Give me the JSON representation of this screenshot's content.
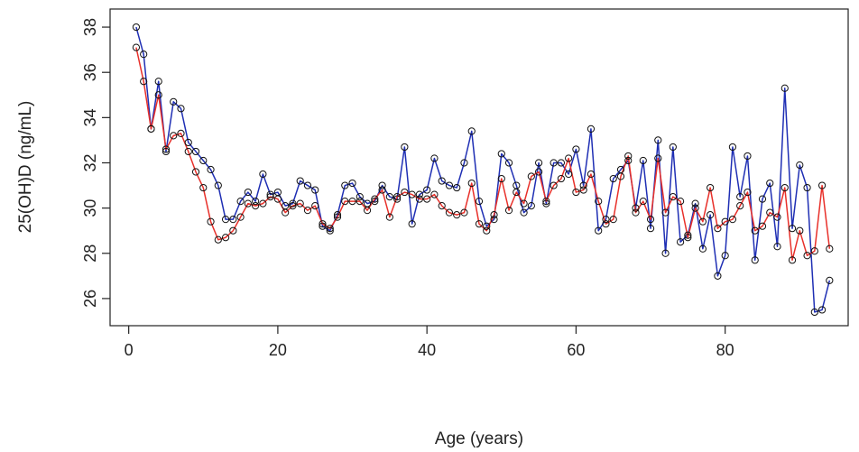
{
  "chart_data": {
    "type": "line",
    "title": "",
    "xlabel": "Age (years)",
    "ylabel": "25(OH)D (ng/mL)",
    "xlim": [
      -2.5,
      96.5
    ],
    "ylim": [
      24.8,
      38.8
    ],
    "grid": false,
    "x_ticks": [
      0,
      20,
      40,
      60,
      80
    ],
    "y_ticks": [
      26,
      28,
      30,
      32,
      34,
      36,
      38
    ],
    "series": [
      {
        "color": "#1f2fb4",
        "x": [
          1,
          2,
          3,
          4,
          5,
          6,
          7,
          8,
          9,
          10,
          11,
          12,
          13,
          14,
          15,
          16,
          17,
          18,
          19,
          20,
          21,
          22,
          23,
          24,
          25,
          26,
          27,
          28,
          29,
          30,
          31,
          32,
          33,
          34,
          35,
          36,
          37,
          38,
          39,
          40,
          41,
          42,
          43,
          44,
          45,
          46,
          47,
          48,
          49,
          50,
          51,
          52,
          53,
          54,
          55,
          56,
          57,
          58,
          59,
          60,
          61,
          62,
          63,
          64,
          65,
          66,
          67,
          68,
          69,
          70,
          71,
          72,
          73,
          74,
          75,
          76,
          77,
          78,
          79,
          80,
          81,
          82,
          83,
          84,
          85,
          86,
          87,
          88,
          89,
          90,
          91,
          92,
          93,
          94
        ],
        "values": [
          38.0,
          36.8,
          33.5,
          35.6,
          32.5,
          34.7,
          34.4,
          32.9,
          32.5,
          32.1,
          31.7,
          31.0,
          29.5,
          29.5,
          30.3,
          30.7,
          30.3,
          31.5,
          30.6,
          30.7,
          30.1,
          30.2,
          31.2,
          31.0,
          30.8,
          29.2,
          29.0,
          29.7,
          31.0,
          31.1,
          30.5,
          30.2,
          30.3,
          31.0,
          30.5,
          30.4,
          32.7,
          29.3,
          30.6,
          30.8,
          32.2,
          31.2,
          31.0,
          30.9,
          32.0,
          33.4,
          30.3,
          29.2,
          29.5,
          32.4,
          32.0,
          31.0,
          29.8,
          30.1,
          32.0,
          30.2,
          32.0,
          32.0,
          31.5,
          32.6,
          31.0,
          33.5,
          29.0,
          29.5,
          31.3,
          31.7,
          32.1,
          30.0,
          32.1,
          29.1,
          33.0,
          28.0,
          32.7,
          28.5,
          28.8,
          30.2,
          28.2,
          29.7,
          27.0,
          27.9,
          32.7,
          30.5,
          32.3,
          27.7,
          30.4,
          31.1,
          28.3,
          35.3,
          29.1,
          31.9,
          30.9,
          25.4,
          25.5,
          26.8
        ]
      },
      {
        "color": "#e8302a",
        "x": [
          1,
          2,
          3,
          4,
          5,
          6,
          7,
          8,
          9,
          10,
          11,
          12,
          13,
          14,
          15,
          16,
          17,
          18,
          19,
          20,
          21,
          22,
          23,
          24,
          25,
          26,
          27,
          28,
          29,
          30,
          31,
          32,
          33,
          34,
          35,
          36,
          37,
          38,
          39,
          40,
          41,
          42,
          43,
          44,
          45,
          46,
          47,
          48,
          49,
          50,
          51,
          52,
          53,
          54,
          55,
          56,
          57,
          58,
          59,
          60,
          61,
          62,
          63,
          64,
          65,
          66,
          67,
          68,
          69,
          70,
          71,
          72,
          73,
          74,
          75,
          76,
          77,
          78,
          79,
          80,
          81,
          82,
          83,
          84,
          85,
          86,
          87,
          88,
          89,
          90,
          91,
          92,
          93,
          94
        ],
        "values": [
          37.1,
          35.6,
          33.5,
          35.0,
          32.6,
          33.2,
          33.3,
          32.5,
          31.6,
          30.9,
          29.4,
          28.6,
          28.7,
          29.0,
          29.6,
          30.2,
          30.1,
          30.2,
          30.5,
          30.4,
          29.8,
          30.1,
          30.2,
          29.9,
          30.1,
          29.3,
          29.1,
          29.6,
          30.3,
          30.3,
          30.3,
          29.9,
          30.4,
          30.8,
          29.6,
          30.5,
          30.7,
          30.6,
          30.4,
          30.4,
          30.6,
          30.1,
          29.8,
          29.7,
          29.8,
          31.1,
          29.3,
          29.0,
          29.7,
          31.3,
          29.9,
          30.7,
          30.2,
          31.4,
          31.6,
          30.3,
          31.0,
          31.3,
          32.2,
          30.7,
          30.8,
          31.5,
          30.3,
          29.3,
          29.5,
          31.4,
          32.3,
          29.8,
          30.3,
          29.5,
          32.2,
          29.8,
          30.5,
          30.3,
          28.7,
          30.0,
          29.4,
          30.9,
          29.1,
          29.4,
          29.5,
          30.1,
          30.7,
          29.0,
          29.2,
          29.8,
          29.6,
          30.9,
          27.7,
          29.0,
          27.9,
          28.1,
          31.0,
          28.2
        ]
      }
    ]
  }
}
